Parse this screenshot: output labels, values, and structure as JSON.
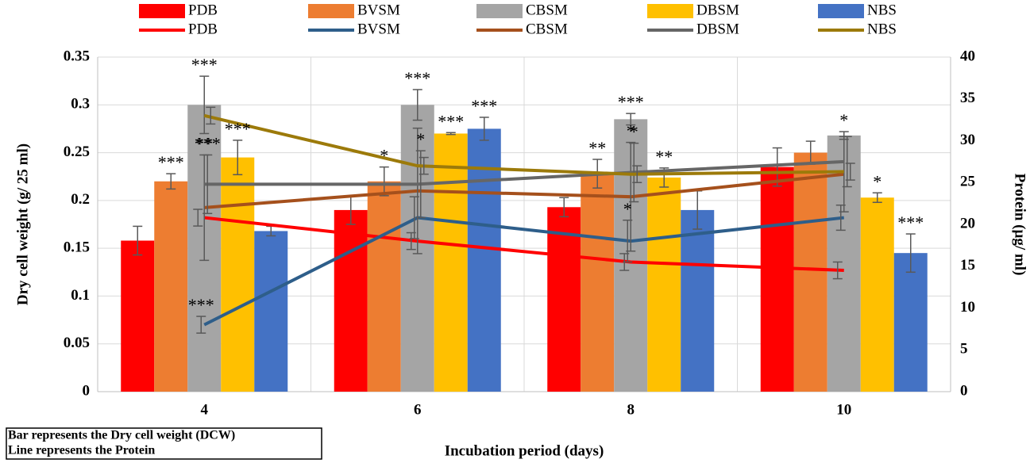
{
  "chart_data": {
    "type": "bar-line",
    "categories": [
      "4",
      "6",
      "8",
      "10"
    ],
    "x_label": "Incubation period (days)",
    "y_label": "Dry cell weight (g/ 25 ml)",
    "y2_label": "Protein (µg/ ml)",
    "ylim": [
      0,
      0.35
    ],
    "yticks": [
      0,
      0.05,
      0.1,
      0.15,
      0.2,
      0.25,
      0.3,
      0.35
    ],
    "y2lim": [
      0,
      40
    ],
    "y2ticks": [
      0,
      5,
      10,
      15,
      20,
      25,
      30,
      35,
      40
    ],
    "grid": true,
    "notes": [
      "Bar represents the Dry cell weight (DCW)",
      "Line represents the Protein"
    ],
    "series": [
      {
        "name": "PDB",
        "kind": "bar",
        "color": "#ff0000",
        "values": [
          0.158,
          0.19,
          0.193,
          0.235
        ],
        "errors": [
          0.015,
          0.015,
          0.01,
          0.02
        ],
        "significance": [
          null,
          null,
          null,
          null
        ]
      },
      {
        "name": "BVSM",
        "kind": "bar",
        "color": "#ed7d31",
        "values": [
          0.22,
          0.22,
          0.228,
          0.25
        ],
        "errors": [
          0.008,
          0.015,
          0.015,
          0.012
        ],
        "significance": [
          "***",
          "*",
          "**",
          null
        ]
      },
      {
        "name": "CBSM",
        "kind": "bar",
        "color": "#a5a5a5",
        "values": [
          0.3,
          0.3,
          0.285,
          0.268
        ],
        "errors": [
          0.03,
          0.016,
          0.006,
          0.004
        ],
        "significance": [
          "***",
          "***",
          "***",
          "*"
        ]
      },
      {
        "name": "DBSM",
        "kind": "bar",
        "color": "#ffc000",
        "values": [
          0.245,
          0.27,
          0.224,
          0.203
        ],
        "errors": [
          0.018,
          0.001,
          0.01,
          0.005
        ],
        "significance": [
          "***",
          "***",
          "**",
          "*"
        ]
      },
      {
        "name": "NBS",
        "kind": "bar",
        "color": "#4472c4",
        "values": [
          0.168,
          0.275,
          0.19,
          0.145
        ],
        "errors": [
          0.005,
          0.012,
          0.02,
          0.02
        ],
        "significance": [
          null,
          "***",
          null,
          "***"
        ]
      },
      {
        "name": "PDB",
        "kind": "line",
        "axis": "y2",
        "color": "#ff0000",
        "values": [
          20.8,
          18,
          15.5,
          14.5
        ],
        "errors": [
          1,
          1,
          1,
          1
        ],
        "significance": [
          null,
          null,
          null,
          null
        ]
      },
      {
        "name": "BVSM",
        "kind": "line",
        "axis": "y2",
        "color": "#2e5e8a",
        "values": [
          8,
          20.8,
          18,
          20.8
        ],
        "errors": [
          1,
          2.5,
          2.5,
          1.5
        ],
        "significance": [
          "***",
          null,
          "*",
          null
        ]
      },
      {
        "name": "CBSM",
        "kind": "line",
        "axis": "y2",
        "color": "#a5501c",
        "values": [
          22,
          24,
          23.3,
          26
        ],
        "errors": [
          6.3,
          7.5,
          6.5,
          4.5
        ],
        "significance": [
          "**",
          null,
          "*",
          null
        ]
      },
      {
        "name": "DBSM",
        "kind": "line",
        "axis": "y2",
        "color": "#666666",
        "values": [
          24.8,
          24.8,
          26.2,
          27.5
        ],
        "errors": [
          3.5,
          4,
          3.5,
          3
        ],
        "significance": [
          "***",
          "*",
          "*",
          null
        ]
      },
      {
        "name": "NBS",
        "kind": "line",
        "axis": "y2",
        "color": "#9c7a0a",
        "values": [
          33,
          27,
          26,
          26.3
        ],
        "errors": [
          1,
          1,
          1,
          1
        ],
        "significance": [
          null,
          null,
          null,
          null
        ]
      }
    ]
  }
}
